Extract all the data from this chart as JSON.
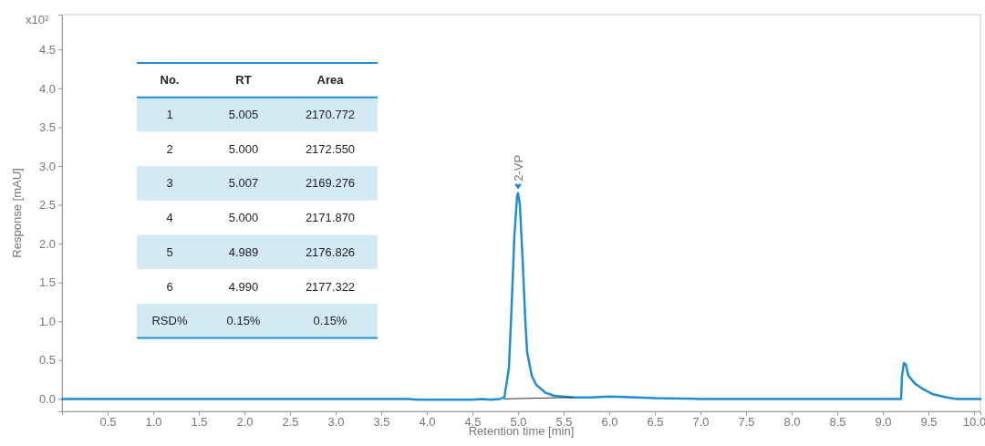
{
  "chart_data": {
    "type": "line",
    "xlabel": "Retention time [min]",
    "ylabel": "Response [mAU]",
    "xlim": [
      0,
      10.07
    ],
    "ylim": [
      -0.16,
      4.95
    ],
    "xticks": [
      {
        "value": 0.5,
        "label": "0.5"
      },
      {
        "value": 1,
        "label": "1.0"
      },
      {
        "value": 1.5,
        "label": "1.5"
      },
      {
        "value": 2,
        "label": "2.0"
      },
      {
        "value": 2.5,
        "label": "2.5"
      },
      {
        "value": 3,
        "label": "3.0"
      },
      {
        "value": 3.5,
        "label": "3.5"
      },
      {
        "value": 4,
        "label": "4.0"
      },
      {
        "value": 4.5,
        "label": "4.5"
      },
      {
        "value": 5,
        "label": "5.0"
      },
      {
        "value": 5.5,
        "label": "5.5"
      },
      {
        "value": 6,
        "label": "6.0"
      },
      {
        "value": 6.5,
        "label": "6.5"
      },
      {
        "value": 7,
        "label": "7.0"
      },
      {
        "value": 7.5,
        "label": "7.5"
      },
      {
        "value": 8,
        "label": "8.0"
      },
      {
        "value": 8.5,
        "label": "8.5"
      },
      {
        "value": 9,
        "label": "9.0"
      },
      {
        "value": 9.5,
        "label": "9.5"
      },
      {
        "value": 10,
        "label": "10.0"
      }
    ],
    "yticks": [
      {
        "value": 0,
        "label": "0.0"
      },
      {
        "value": 0.5,
        "label": "0.5"
      },
      {
        "value": 1,
        "label": "1.0"
      },
      {
        "value": 1.5,
        "label": "1.5"
      },
      {
        "value": 2,
        "label": "2.0"
      },
      {
        "value": 2.5,
        "label": "2.5"
      },
      {
        "value": 3,
        "label": "3.0"
      },
      {
        "value": 3.5,
        "label": "3.5"
      },
      {
        "value": 4,
        "label": "4.0"
      },
      {
        "value": 4.5,
        "label": "4.5"
      }
    ],
    "grid": false,
    "line_style": "solid",
    "marker": "none",
    "series": [
      {
        "color": "#1f8fcf",
        "x": [
          0,
          1,
          2,
          3,
          3.8,
          3.9,
          4.5,
          4.6,
          4.7,
          4.8,
          4.85,
          4.9,
          4.93,
          4.96,
          4.99,
          5.0,
          5.02,
          5.05,
          5.08,
          5.1,
          5.15,
          5.2,
          5.3,
          5.4,
          5.6,
          5.8,
          6.0,
          6.3,
          6.5,
          7,
          8,
          9,
          9.2,
          9.21,
          9.23,
          9.25,
          9.28,
          9.35,
          9.45,
          9.55,
          9.7,
          9.8,
          10.07
        ],
        "values": [
          0,
          0,
          0,
          0,
          0,
          -0.01,
          -0.01,
          0,
          -0.01,
          0,
          0.02,
          0.4,
          1.2,
          2.1,
          2.62,
          2.65,
          2.5,
          1.8,
          1.0,
          0.6,
          0.3,
          0.18,
          0.08,
          0.04,
          0.02,
          0.02,
          0.03,
          0.02,
          0.01,
          0,
          0,
          0,
          0,
          0.3,
          0.46,
          0.45,
          0.3,
          0.2,
          0.12,
          0.06,
          0.02,
          0,
          0
        ]
      },
      {
        "color": "#333333",
        "x": [
          4.85,
          5.6
        ],
        "values": [
          0.0,
          0.02
        ]
      }
    ],
    "annotations": [
      "x10²",
      {
        "text": "2-VP",
        "x": 5.0,
        "y": 2.72
      },
      "No.",
      "RT",
      "Area",
      "1",
      "5.005",
      "2170.772",
      "2",
      "5.000",
      "2172.550",
      "3",
      "5.007",
      "2169.276",
      "4",
      "5.000",
      "2171.870",
      "5",
      "4.989",
      "2176.826",
      "6",
      "4.990",
      "2177.322",
      "RSD%",
      "0.15%",
      "0.15%"
    ]
  }
}
